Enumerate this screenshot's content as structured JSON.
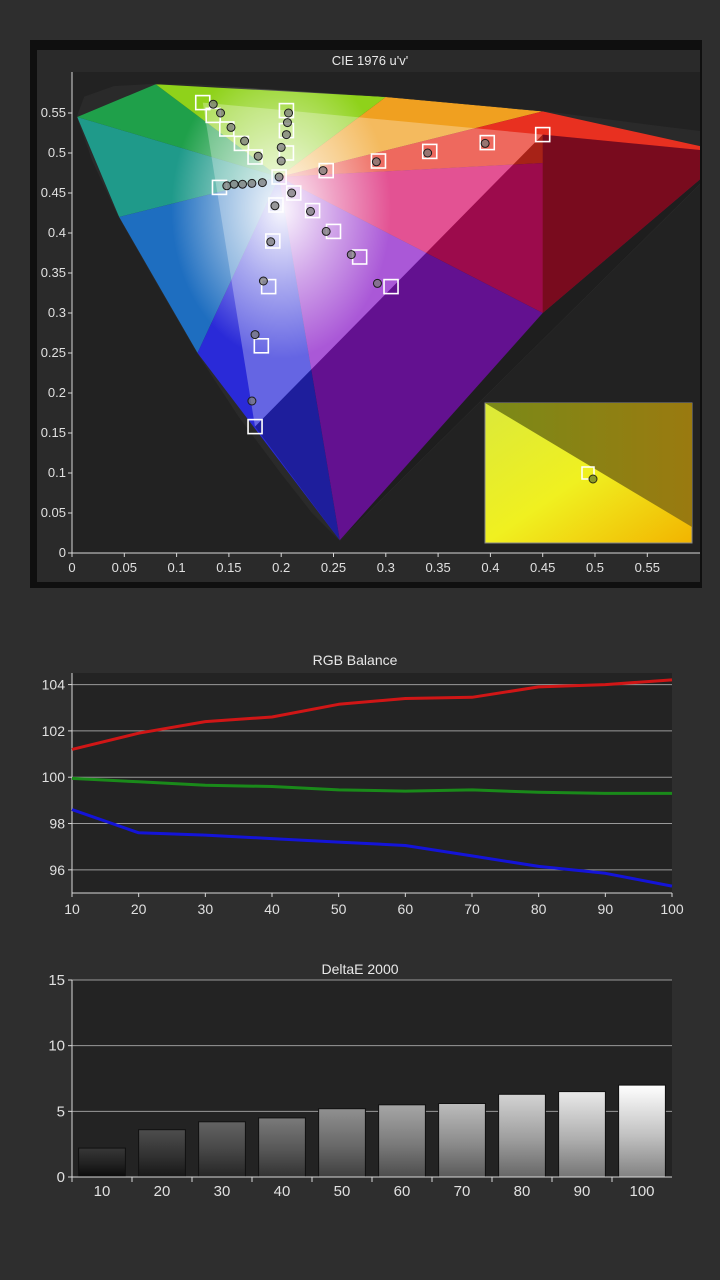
{
  "charts": {
    "cie": {
      "title": "CIE 1976 u'v'",
      "x_ticks": [
        "0",
        "0.05",
        "0.1",
        "0.15",
        "0.2",
        "0.25",
        "0.3",
        "0.35",
        "0.4",
        "0.45",
        "0.5",
        "0.55"
      ],
      "y_ticks": [
        "0",
        "0.05",
        "0.1",
        "0.15",
        "0.2",
        "0.25",
        "0.3",
        "0.35",
        "0.4",
        "0.45",
        "0.5",
        "0.55"
      ]
    },
    "rgb": {
      "title": "RGB Balance",
      "x_ticks": [
        "10",
        "20",
        "30",
        "40",
        "50",
        "60",
        "70",
        "80",
        "90",
        "100"
      ],
      "y_ticks": [
        "96",
        "98",
        "100",
        "102",
        "104"
      ]
    },
    "deltae": {
      "title": "DeltaE 2000",
      "x_ticks": [
        "10",
        "20",
        "30",
        "40",
        "50",
        "60",
        "70",
        "80",
        "90",
        "100"
      ],
      "y_ticks": [
        "0",
        "5",
        "10",
        "15"
      ]
    }
  },
  "chart_data": [
    {
      "type": "scatter",
      "title": "CIE 1976 u'v'",
      "xlabel": "",
      "ylabel": "",
      "xlim": [
        0,
        0.6
      ],
      "ylim": [
        0,
        0.58
      ],
      "grid": false,
      "gamut_triangle": [
        [
          0.45,
          0.523
        ],
        [
          0.125,
          0.563
        ],
        [
          0.175,
          0.158
        ]
      ],
      "targets": [
        {
          "u": 0.125,
          "v": 0.563
        },
        {
          "u": 0.135,
          "v": 0.547
        },
        {
          "u": 0.148,
          "v": 0.53
        },
        {
          "u": 0.162,
          "v": 0.512
        },
        {
          "u": 0.175,
          "v": 0.495
        },
        {
          "u": 0.205,
          "v": 0.553
        },
        {
          "u": 0.205,
          "v": 0.528
        },
        {
          "u": 0.205,
          "v": 0.5
        },
        {
          "u": 0.45,
          "v": 0.523
        },
        {
          "u": 0.397,
          "v": 0.513
        },
        {
          "u": 0.342,
          "v": 0.502
        },
        {
          "u": 0.293,
          "v": 0.49
        },
        {
          "u": 0.243,
          "v": 0.478
        },
        {
          "u": 0.141,
          "v": 0.457
        },
        {
          "u": 0.305,
          "v": 0.333
        },
        {
          "u": 0.275,
          "v": 0.37
        },
        {
          "u": 0.25,
          "v": 0.402
        },
        {
          "u": 0.23,
          "v": 0.428
        },
        {
          "u": 0.212,
          "v": 0.45
        },
        {
          "u": 0.175,
          "v": 0.158
        },
        {
          "u": 0.181,
          "v": 0.259
        },
        {
          "u": 0.188,
          "v": 0.333
        },
        {
          "u": 0.192,
          "v": 0.39
        },
        {
          "u": 0.195,
          "v": 0.435
        },
        {
          "u": 0.198,
          "v": 0.47
        }
      ],
      "measured": [
        {
          "u": 0.135,
          "v": 0.561
        },
        {
          "u": 0.142,
          "v": 0.55
        },
        {
          "u": 0.152,
          "v": 0.532
        },
        {
          "u": 0.165,
          "v": 0.515
        },
        {
          "u": 0.178,
          "v": 0.496
        },
        {
          "u": 0.207,
          "v": 0.55
        },
        {
          "u": 0.206,
          "v": 0.538
        },
        {
          "u": 0.205,
          "v": 0.523
        },
        {
          "u": 0.2,
          "v": 0.507
        },
        {
          "u": 0.2,
          "v": 0.49
        },
        {
          "u": 0.395,
          "v": 0.512
        },
        {
          "u": 0.34,
          "v": 0.5
        },
        {
          "u": 0.291,
          "v": 0.489
        },
        {
          "u": 0.24,
          "v": 0.478
        },
        {
          "u": 0.148,
          "v": 0.459
        },
        {
          "u": 0.155,
          "v": 0.461
        },
        {
          "u": 0.163,
          "v": 0.461
        },
        {
          "u": 0.172,
          "v": 0.462
        },
        {
          "u": 0.182,
          "v": 0.463
        },
        {
          "u": 0.292,
          "v": 0.337
        },
        {
          "u": 0.267,
          "v": 0.373
        },
        {
          "u": 0.243,
          "v": 0.402
        },
        {
          "u": 0.228,
          "v": 0.427
        },
        {
          "u": 0.21,
          "v": 0.45
        },
        {
          "u": 0.172,
          "v": 0.19
        },
        {
          "u": 0.175,
          "v": 0.273
        },
        {
          "u": 0.183,
          "v": 0.34
        },
        {
          "u": 0.19,
          "v": 0.389
        },
        {
          "u": 0.194,
          "v": 0.434
        },
        {
          "u": 0.198,
          "v": 0.47
        }
      ],
      "inset": {
        "target": {
          "u": 0.198,
          "v": 0.47
        },
        "measured": {
          "u": 0.199,
          "v": 0.4696
        }
      }
    },
    {
      "type": "line",
      "title": "RGB Balance",
      "xlabel": "",
      "ylabel": "",
      "xlim": [
        10,
        100
      ],
      "ylim": [
        95,
        104.5
      ],
      "grid": true,
      "x": [
        10,
        20,
        30,
        40,
        50,
        60,
        70,
        80,
        90,
        100
      ],
      "series": [
        {
          "color": "#d01616",
          "values": [
            101.2,
            101.9,
            102.4,
            102.6,
            103.15,
            103.4,
            103.45,
            103.9,
            104.0,
            104.2
          ]
        },
        {
          "color": "#1a8a1a",
          "values": [
            99.95,
            99.8,
            99.65,
            99.6,
            99.45,
            99.4,
            99.45,
            99.35,
            99.3,
            99.3
          ]
        },
        {
          "color": "#1414d8",
          "values": [
            98.6,
            97.6,
            97.5,
            97.35,
            97.2,
            97.05,
            96.6,
            96.15,
            95.85,
            95.3
          ]
        }
      ]
    },
    {
      "type": "bar",
      "title": "DeltaE 2000",
      "xlabel": "",
      "ylabel": "",
      "ylim": [
        0,
        15
      ],
      "grid": true,
      "categories": [
        "10",
        "20",
        "30",
        "40",
        "50",
        "60",
        "70",
        "80",
        "90",
        "100"
      ],
      "values": [
        2.2,
        3.6,
        4.2,
        4.5,
        5.2,
        5.5,
        5.6,
        6.3,
        6.5,
        7.0
      ]
    }
  ]
}
